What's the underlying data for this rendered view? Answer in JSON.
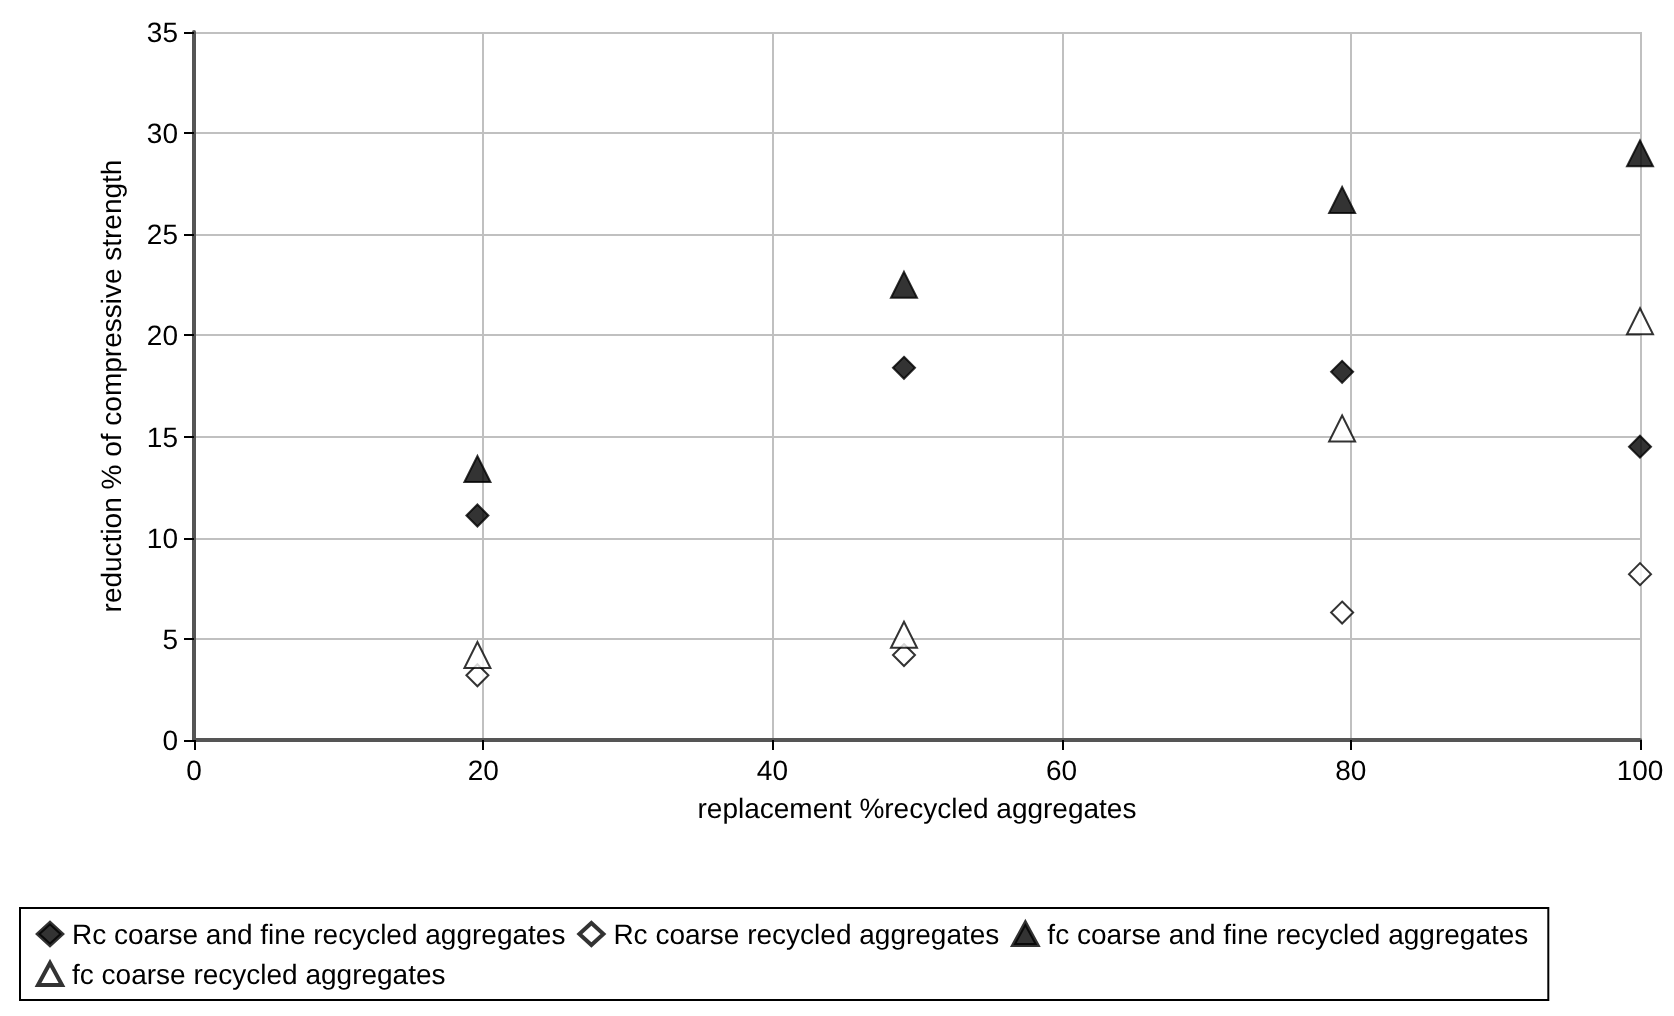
{
  "chart_data": {
    "type": "scatter",
    "xlabel": "replacement %recycled aggregates",
    "ylabel": "reduction % of compressive strength",
    "x": [
      19.6,
      49.1,
      79.4,
      100
    ],
    "series": [
      {
        "name": "Rc coarse and fine recycled aggregates",
        "color": "#000000",
        "marker": "diamond",
        "values": [
          11.1,
          18.4,
          18.2,
          14.5
        ]
      },
      {
        "name": "Rc coarse recycled aggregates",
        "color": "#ffffff",
        "marker": "diamond",
        "values": [
          3.2,
          4.2,
          6.3,
          8.2
        ]
      },
      {
        "name": "fc coarse and fine recycled aggregates",
        "color": "#000000",
        "marker": "triangle",
        "values": [
          13.4,
          22.5,
          26.7,
          29
        ]
      },
      {
        "name": "fc coarse recycled aggregates",
        "color": "#ffffff",
        "marker": "triangle",
        "values": [
          4.2,
          5.2,
          15.4,
          20.7
        ]
      }
    ],
    "xlim": [
      0,
      100
    ],
    "xticks": [
      0,
      20,
      40,
      60,
      80,
      100
    ],
    "ylim": [
      0,
      35
    ],
    "yticks": [
      0,
      5,
      10,
      15,
      20,
      25,
      30,
      35
    ],
    "grid": true,
    "legend": "bottom"
  }
}
